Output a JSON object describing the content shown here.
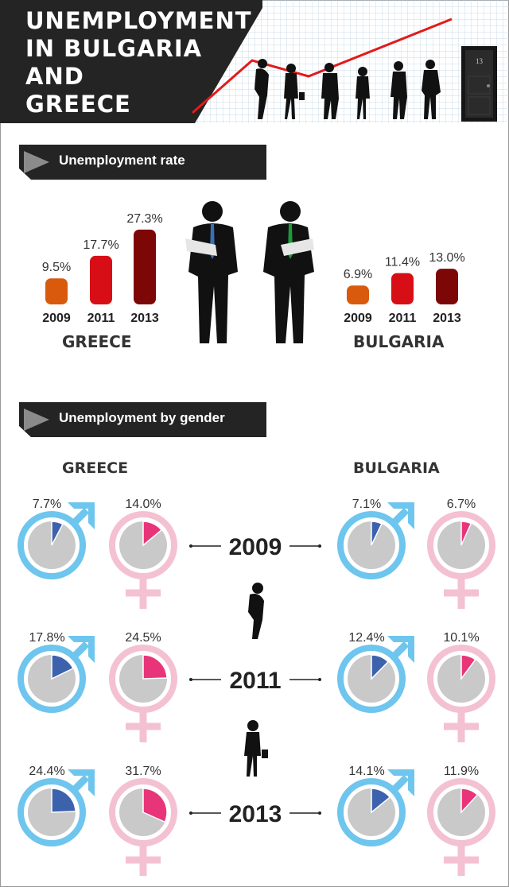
{
  "title": [
    "UNEMPLOYMENT",
    "IN BULGARIA",
    "AND",
    "GREECE"
  ],
  "door_number": "13",
  "sections": {
    "rate_label": "Unemployment rate",
    "gender_label": "Unemployment by gender"
  },
  "countries": {
    "greece": "GREECE",
    "bulgaria": "BULGARIA"
  },
  "colors": {
    "y2009": "#d95a0c",
    "y2011": "#d70e16",
    "y2013": "#7d0606",
    "male": "#6ec5ee",
    "male_wedge": "#3c62ad",
    "female": "#f4c1d2",
    "female_wedge": "#e8357a",
    "pie_base": "#c9c9c9",
    "banner": "#222222",
    "trend_line": "#e11b1b"
  },
  "chart_data": [
    {
      "type": "bar",
      "title": "GREECE",
      "categories": [
        "2009",
        "2011",
        "2013"
      ],
      "values": [
        9.5,
        17.7,
        27.3
      ],
      "value_labels": [
        "9.5%",
        "17.7%",
        "27.3%"
      ]
    },
    {
      "type": "bar",
      "title": "BULGARIA",
      "categories": [
        "2009",
        "2011",
        "2013"
      ],
      "values": [
        6.9,
        11.4,
        13.0
      ],
      "value_labels": [
        "6.9%",
        "11.4%",
        "13.0%"
      ]
    },
    {
      "type": "pie",
      "title": "Unemployment by gender",
      "years": [
        "2009",
        "2011",
        "2013"
      ],
      "series": [
        {
          "country": "GREECE",
          "gender": "male",
          "values": [
            7.7,
            17.8,
            24.4
          ],
          "labels": [
            "7.7%",
            "17.8%",
            "24.4%"
          ]
        },
        {
          "country": "GREECE",
          "gender": "female",
          "values": [
            14.0,
            24.5,
            31.7
          ],
          "labels": [
            "14.0%",
            "24.5%",
            "31.7%"
          ]
        },
        {
          "country": "BULGARIA",
          "gender": "male",
          "values": [
            7.1,
            12.4,
            14.1
          ],
          "labels": [
            "7.1%",
            "12.4%",
            "14.1%"
          ]
        },
        {
          "country": "BULGARIA",
          "gender": "female",
          "values": [
            6.7,
            10.1,
            11.9
          ],
          "labels": [
            "6.7%",
            "10.1%",
            "11.9%"
          ]
        }
      ]
    }
  ]
}
